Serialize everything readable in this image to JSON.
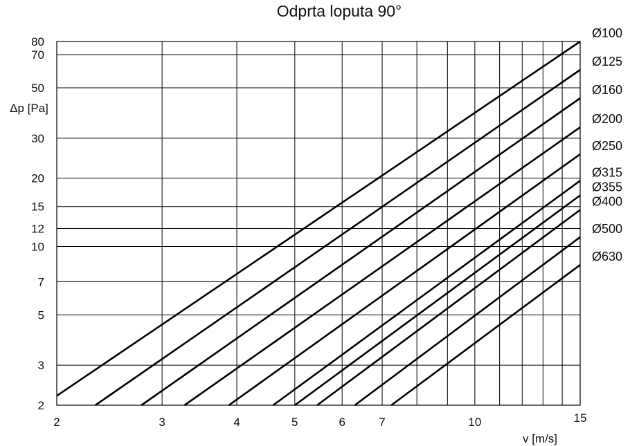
{
  "chart_data": {
    "type": "line",
    "title": "Odprta loputa 90°",
    "xlabel": "v [m/s]",
    "ylabel": "Δp [Pa]",
    "xscale": "log",
    "yscale": "log",
    "xlim": [
      2,
      15
    ],
    "ylim": [
      2,
      80
    ],
    "grid": true,
    "x_gridlines": [
      2,
      3,
      4,
      5,
      6,
      7,
      8,
      9,
      10,
      11,
      12,
      13,
      14,
      15
    ],
    "y_gridlines": [
      2,
      3,
      5,
      7,
      10,
      12,
      15,
      20,
      30,
      50,
      70,
      80
    ],
    "x_tick_labels": [
      "2",
      "3",
      "4",
      "5",
      "6",
      "7",
      "10",
      "15"
    ],
    "y_tick_labels": [
      "2",
      "3",
      "5",
      "7",
      "10",
      "12",
      "15",
      "20",
      "30",
      "50",
      "70",
      "80"
    ],
    "legend_placement": "right-end labels",
    "series": [
      {
        "name": "Ø100",
        "x": [
          2,
          15
        ],
        "y": [
          2.2,
          80
        ]
      },
      {
        "name": "Ø125",
        "x": [
          2.32,
          15
        ],
        "y": [
          2,
          60
        ]
      },
      {
        "name": "Ø160",
        "x": [
          2.77,
          15
        ],
        "y": [
          2,
          45
        ]
      },
      {
        "name": "Ø200",
        "x": [
          3.27,
          15
        ],
        "y": [
          2,
          33.5
        ]
      },
      {
        "name": "Ø250",
        "x": [
          3.88,
          15
        ],
        "y": [
          2,
          25.5
        ]
      },
      {
        "name": "Ø315",
        "x": [
          4.6,
          15
        ],
        "y": [
          2,
          19.5
        ]
      },
      {
        "name": "Ø355",
        "x": [
          5.0,
          15
        ],
        "y": [
          2,
          16.8
        ]
      },
      {
        "name": "Ø400",
        "x": [
          5.45,
          15
        ],
        "y": [
          2,
          14.5
        ]
      },
      {
        "name": "Ø500",
        "x": [
          6.3,
          15
        ],
        "y": [
          2,
          11
        ]
      },
      {
        "name": "Ø630",
        "x": [
          7.25,
          15
        ],
        "y": [
          2,
          8.3
        ]
      }
    ]
  }
}
